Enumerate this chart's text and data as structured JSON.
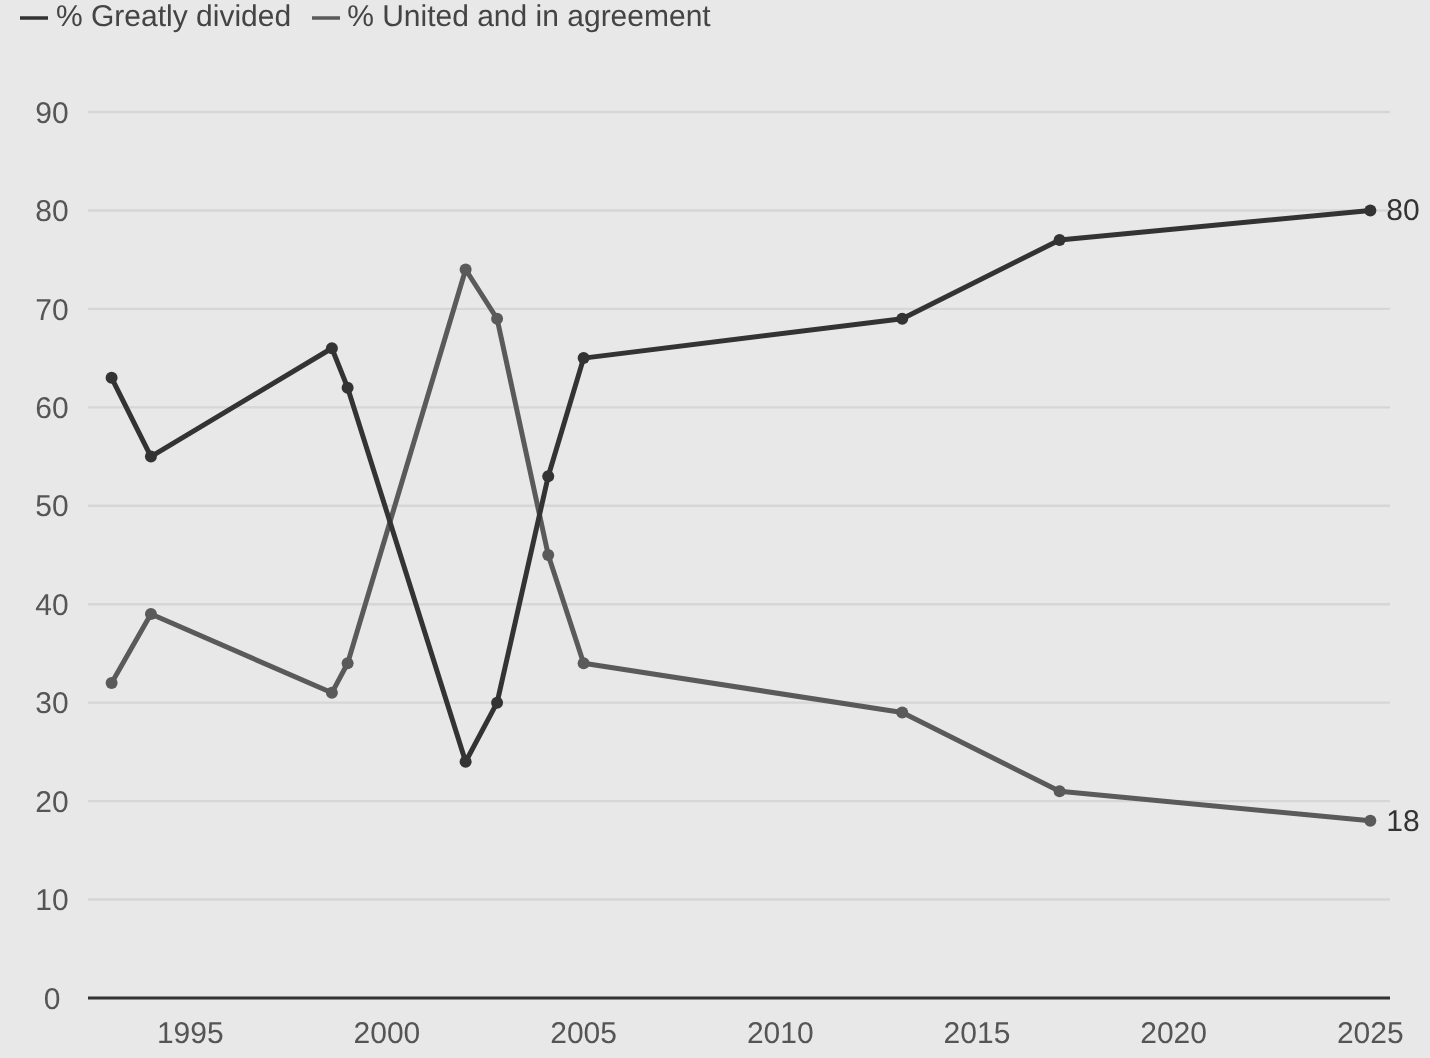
{
  "chart_data": {
    "type": "line",
    "x": [
      1993,
      1994,
      1998.6,
      1999,
      2002,
      2002.8,
      2004.1,
      2005,
      2013.1,
      2017.1,
      2025
    ],
    "series": [
      {
        "name": "% United and in agreement",
        "color": "#5a5a5a",
        "values": [
          32,
          39,
          31,
          34,
          74,
          69,
          45,
          34,
          29,
          21,
          18
        ],
        "value_labels": [
          null,
          null,
          null,
          null,
          null,
          null,
          null,
          null,
          null,
          null,
          "18"
        ]
      },
      {
        "name": "% Greatly divided",
        "color": "#333333",
        "values": [
          63,
          55,
          66,
          62,
          24,
          30,
          53,
          65,
          69,
          77,
          80
        ],
        "value_labels": [
          null,
          null,
          null,
          null,
          null,
          null,
          null,
          null,
          null,
          null,
          "80"
        ]
      }
    ],
    "xlim": [
      1992.4,
      2025.5
    ],
    "xticks": [
      1995,
      2000,
      2005,
      2010,
      2015,
      2020,
      2025
    ],
    "ylim": [
      0,
      90
    ],
    "yticks": [
      0,
      10,
      20,
      30,
      40,
      50,
      60,
      70,
      80,
      90
    ],
    "grid": "y",
    "legend": "top left",
    "marker": "circle",
    "line_style": "solid"
  }
}
